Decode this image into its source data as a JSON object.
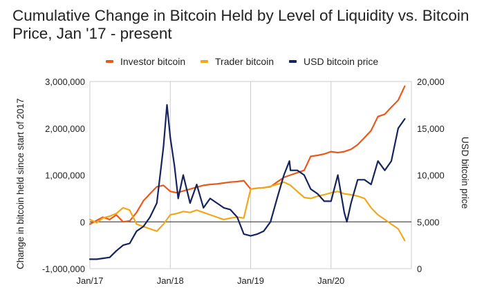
{
  "chart_data": {
    "type": "line",
    "title": "Cumulative Change in Bitcoin Held by Level of Liquidity vs. Bitcoin Price, Jan '17 - present",
    "ylabel": "Change in bitcoin held since start of 2017",
    "y2label": "USD bitcoin price",
    "legend_position": "top",
    "grid": "vertical",
    "colors": {
      "investor": "#e8591a",
      "trader": "#f0a818",
      "price": "#16235c"
    },
    "x_ticks": [
      "Jan/17",
      "Jan/18",
      "Jan/19",
      "Jan/20"
    ],
    "y_ticks": [
      "-1,000,000",
      "0",
      "1,000,000",
      "2,000,000",
      "3,000,000"
    ],
    "y2_ticks": [
      "0",
      "5,000",
      "10,000",
      "15,000",
      "20,000"
    ],
    "ylim": [
      -1000000,
      3000000
    ],
    "y2lim": [
      0,
      20000
    ],
    "xlim": [
      "2017-01-01",
      "2020-12-31"
    ],
    "series": [
      {
        "name": "Investor bitcoin",
        "axis": "left",
        "x": [
          "2017-01-01",
          "2017-02-01",
          "2017-03-01",
          "2017-04-01",
          "2017-05-01",
          "2017-06-01",
          "2017-07-01",
          "2017-08-01",
          "2017-09-01",
          "2017-10-01",
          "2017-11-01",
          "2017-12-01",
          "2018-01-01",
          "2018-02-01",
          "2018-03-01",
          "2018-04-01",
          "2018-05-01",
          "2018-06-01",
          "2018-07-01",
          "2018-08-01",
          "2018-09-01",
          "2018-10-01",
          "2018-11-01",
          "2018-12-01",
          "2019-01-01",
          "2019-02-01",
          "2019-03-01",
          "2019-04-01",
          "2019-05-01",
          "2019-06-01",
          "2019-07-01",
          "2019-08-01",
          "2019-09-01",
          "2019-10-01",
          "2019-11-01",
          "2019-12-01",
          "2020-01-01",
          "2020-02-01",
          "2020-03-01",
          "2020-04-01",
          "2020-05-01",
          "2020-06-01",
          "2020-07-01",
          "2020-08-01",
          "2020-09-01",
          "2020-10-01",
          "2020-11-01",
          "2020-12-01"
        ],
        "values": [
          -50000,
          30000,
          100000,
          50000,
          150000,
          0,
          20000,
          200000,
          450000,
          600000,
          750000,
          780000,
          650000,
          620000,
          660000,
          700000,
          740000,
          780000,
          800000,
          810000,
          830000,
          850000,
          860000,
          880000,
          700000,
          720000,
          730000,
          750000,
          850000,
          950000,
          1000000,
          1050000,
          1100000,
          1400000,
          1420000,
          1450000,
          1500000,
          1480000,
          1500000,
          1550000,
          1650000,
          1800000,
          1950000,
          2250000,
          2300000,
          2450000,
          2600000,
          2900000
        ]
      },
      {
        "name": "Trader bitcoin",
        "axis": "left",
        "x": [
          "2017-01-01",
          "2017-02-01",
          "2017-03-01",
          "2017-04-01",
          "2017-05-01",
          "2017-06-01",
          "2017-07-01",
          "2017-08-01",
          "2017-09-01",
          "2017-10-01",
          "2017-11-01",
          "2017-12-01",
          "2018-01-01",
          "2018-02-01",
          "2018-03-01",
          "2018-04-01",
          "2018-05-01",
          "2018-06-01",
          "2018-07-01",
          "2018-08-01",
          "2018-09-01",
          "2018-10-01",
          "2018-11-01",
          "2018-12-01",
          "2019-01-01",
          "2019-02-01",
          "2019-03-01",
          "2019-04-01",
          "2019-05-01",
          "2019-06-01",
          "2019-07-01",
          "2019-08-01",
          "2019-09-01",
          "2019-10-01",
          "2019-11-01",
          "2019-12-01",
          "2020-01-01",
          "2020-02-01",
          "2020-03-01",
          "2020-04-01",
          "2020-05-01",
          "2020-06-01",
          "2020-07-01",
          "2020-08-01",
          "2020-09-01",
          "2020-10-01",
          "2020-11-01",
          "2020-12-01"
        ],
        "values": [
          50000,
          -20000,
          80000,
          120000,
          180000,
          300000,
          250000,
          -50000,
          -100000,
          -150000,
          -200000,
          -50000,
          150000,
          180000,
          220000,
          200000,
          250000,
          200000,
          150000,
          100000,
          50000,
          80000,
          100000,
          80000,
          700000,
          720000,
          730000,
          760000,
          800000,
          850000,
          780000,
          650000,
          520000,
          500000,
          550000,
          580000,
          620000,
          650000,
          600000,
          580000,
          550000,
          500000,
          300000,
          150000,
          50000,
          -50000,
          -150000,
          -400000
        ]
      },
      {
        "name": "USD bitcoin price",
        "axis": "right",
        "x": [
          "2017-01-01",
          "2017-02-01",
          "2017-03-01",
          "2017-04-01",
          "2017-05-01",
          "2017-06-01",
          "2017-07-01",
          "2017-08-01",
          "2017-09-01",
          "2017-10-01",
          "2017-11-01",
          "2017-12-01",
          "2017-12-17",
          "2018-01-01",
          "2018-01-20",
          "2018-02-06",
          "2018-03-01",
          "2018-04-01",
          "2018-05-01",
          "2018-06-01",
          "2018-07-01",
          "2018-08-01",
          "2018-09-01",
          "2018-10-01",
          "2018-11-01",
          "2018-12-01",
          "2019-01-01",
          "2019-02-01",
          "2019-03-01",
          "2019-04-01",
          "2019-05-01",
          "2019-06-01",
          "2019-06-26",
          "2019-07-01",
          "2019-08-01",
          "2019-09-01",
          "2019-10-01",
          "2019-11-01",
          "2019-12-01",
          "2020-01-01",
          "2020-02-01",
          "2020-03-01",
          "2020-03-13",
          "2020-04-01",
          "2020-05-01",
          "2020-06-01",
          "2020-07-01",
          "2020-08-01",
          "2020-09-01",
          "2020-10-01",
          "2020-11-01",
          "2020-12-01"
        ],
        "values": [
          1000,
          1000,
          1100,
          1200,
          1900,
          2500,
          2700,
          4000,
          4500,
          5500,
          7000,
          13000,
          17500,
          14000,
          11000,
          7500,
          10000,
          7000,
          9000,
          6500,
          7500,
          7000,
          6500,
          6300,
          5500,
          3700,
          3500,
          3700,
          4000,
          5000,
          7500,
          10000,
          11500,
          10500,
          10500,
          10000,
          8500,
          8000,
          7200,
          7200,
          10000,
          6000,
          5000,
          7000,
          9500,
          9500,
          9000,
          11500,
          10500,
          11500,
          15000,
          16000
        ]
      }
    ]
  }
}
